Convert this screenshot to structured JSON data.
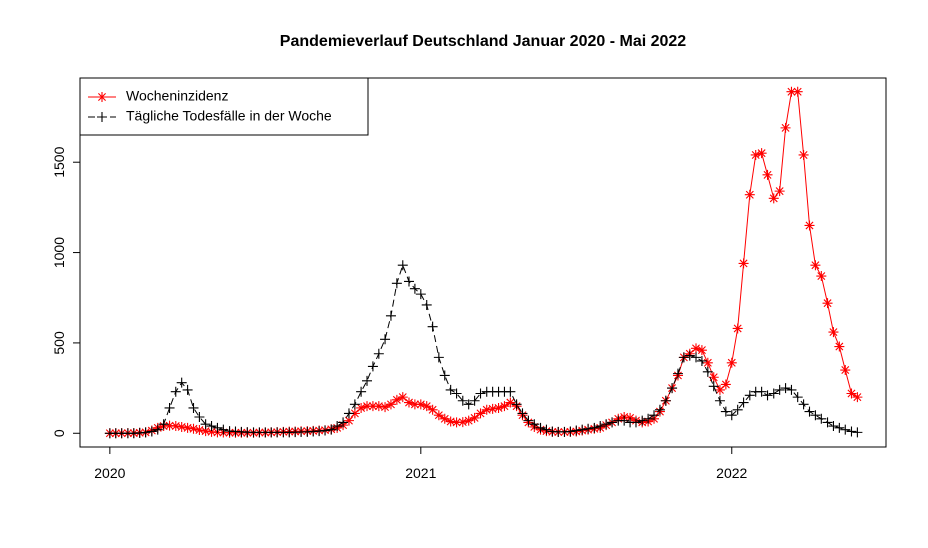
{
  "chart_data": {
    "type": "line",
    "title": "Pandemieverlauf Deutschland Januar 2020 - Mai 2022",
    "x": [
      2020,
      2020.019,
      2020.038,
      2020.058,
      2020.077,
      2020.096,
      2020.115,
      2020.135,
      2020.154,
      2020.173,
      2020.192,
      2020.212,
      2020.231,
      2020.25,
      2020.269,
      2020.288,
      2020.308,
      2020.327,
      2020.346,
      2020.365,
      2020.385,
      2020.404,
      2020.423,
      2020.442,
      2020.462,
      2020.481,
      2020.5,
      2020.519,
      2020.538,
      2020.558,
      2020.577,
      2020.596,
      2020.615,
      2020.635,
      2020.654,
      2020.673,
      2020.692,
      2020.712,
      2020.731,
      2020.75,
      2020.769,
      2020.788,
      2020.808,
      2020.827,
      2020.846,
      2020.865,
      2020.885,
      2020.904,
      2020.923,
      2020.942,
      2020.962,
      2020.981,
      2021,
      2021.019,
      2021.038,
      2021.058,
      2021.077,
      2021.096,
      2021.115,
      2021.135,
      2021.154,
      2021.173,
      2021.192,
      2021.212,
      2021.231,
      2021.25,
      2021.269,
      2021.288,
      2021.308,
      2021.327,
      2021.346,
      2021.365,
      2021.385,
      2021.404,
      2021.423,
      2021.442,
      2021.462,
      2021.481,
      2021.5,
      2021.519,
      2021.538,
      2021.558,
      2021.577,
      2021.596,
      2021.615,
      2021.635,
      2021.654,
      2021.673,
      2021.692,
      2021.712,
      2021.731,
      2021.75,
      2021.769,
      2021.788,
      2021.808,
      2021.827,
      2021.846,
      2021.865,
      2021.885,
      2021.904,
      2021.923,
      2021.942,
      2021.962,
      2021.981,
      2022,
      2022.019,
      2022.038,
      2022.058,
      2022.077,
      2022.096,
      2022.115,
      2022.135,
      2022.154,
      2022.173,
      2022.192,
      2022.212,
      2022.231,
      2022.25,
      2022.269,
      2022.288,
      2022.308,
      2022.327,
      2022.346,
      2022.365,
      2022.385,
      2022.404
    ],
    "series": [
      {
        "name": "Wocheninzidenz",
        "color": "#ff0000",
        "linestyle": "solid",
        "marker": "asterisk",
        "values": [
          0,
          0,
          0,
          1,
          1,
          3,
          5,
          15,
          30,
          40,
          42,
          40,
          35,
          30,
          25,
          18,
          12,
          8,
          5,
          4,
          3,
          3,
          3,
          3,
          3,
          4,
          4,
          5,
          6,
          8,
          9,
          10,
          11,
          12,
          13,
          15,
          17,
          22,
          30,
          45,
          70,
          110,
          140,
          150,
          150,
          150,
          145,
          160,
          185,
          200,
          170,
          160,
          160,
          150,
          130,
          100,
          80,
          65,
          60,
          62,
          70,
          85,
          110,
          130,
          135,
          140,
          150,
          170,
          150,
          100,
          60,
          35,
          20,
          12,
          8,
          7,
          7,
          8,
          10,
          15,
          20,
          25,
          30,
          45,
          60,
          80,
          90,
          85,
          70,
          60,
          65,
          80,
          120,
          180,
          250,
          320,
          420,
          440,
          470,
          460,
          390,
          310,
          240,
          270,
          390,
          580,
          940,
          1320,
          1540,
          1550,
          1430,
          1300,
          1340,
          1690,
          1890,
          1890,
          1540,
          1150,
          930,
          870,
          720,
          560,
          480,
          350,
          220,
          200
        ]
      },
      {
        "name": "Tägliche Todesfälle in der Woche",
        "color": "#000000",
        "linestyle": "dashed",
        "marker": "plus",
        "values": [
          0,
          0,
          0,
          0,
          0,
          2,
          5,
          10,
          20,
          50,
          140,
          230,
          280,
          240,
          140,
          90,
          50,
          40,
          30,
          20,
          12,
          10,
          8,
          6,
          5,
          5,
          5,
          5,
          5,
          5,
          5,
          6,
          7,
          8,
          10,
          12,
          15,
          20,
          40,
          60,
          110,
          160,
          230,
          290,
          370,
          440,
          520,
          650,
          830,
          930,
          840,
          800,
          770,
          710,
          590,
          420,
          320,
          240,
          220,
          180,
          160,
          180,
          220,
          230,
          230,
          230,
          230,
          230,
          160,
          110,
          70,
          50,
          30,
          20,
          10,
          8,
          8,
          10,
          15,
          20,
          25,
          30,
          40,
          50,
          60,
          70,
          70,
          60,
          60,
          70,
          80,
          100,
          130,
          180,
          250,
          330,
          420,
          430,
          420,
          400,
          340,
          260,
          180,
          120,
          100,
          130,
          170,
          210,
          230,
          230,
          210,
          220,
          240,
          250,
          240,
          200,
          160,
          120,
          100,
          80,
          60,
          40,
          30,
          20,
          10,
          5
        ]
      }
    ],
    "xlim": [
      2019.904,
      2022.496
    ],
    "xticks": [
      2020,
      2021,
      2022
    ],
    "ylim": [
      -76,
      1966
    ],
    "yticks": [
      0,
      500,
      1000,
      1500
    ],
    "legend": "topleft"
  }
}
